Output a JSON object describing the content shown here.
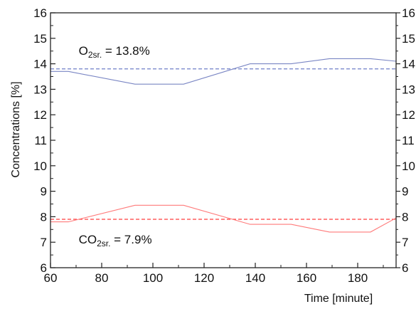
{
  "chart_data": {
    "type": "line",
    "xlabel": "Time [minute]",
    "ylabel": "Concentrations [%]",
    "xlim": [
      60,
      195
    ],
    "ylim": [
      6,
      16
    ],
    "x_ticks": [
      60,
      80,
      100,
      120,
      140,
      160,
      180
    ],
    "y_ticks": [
      6,
      7,
      8,
      9,
      10,
      11,
      12,
      13,
      14,
      15,
      16
    ],
    "right_y_ticks": [
      6,
      7,
      8,
      9,
      10,
      11,
      12,
      13,
      14,
      15,
      16
    ],
    "series": [
      {
        "color": "#7a86c4",
        "points": [
          [
            60,
            13.7
          ],
          [
            67,
            13.7
          ],
          [
            93,
            13.2
          ],
          [
            112,
            13.2
          ],
          [
            138,
            14.0
          ],
          [
            154,
            14.0
          ],
          [
            169,
            14.2
          ],
          [
            185,
            14.2
          ],
          [
            195,
            14.1
          ]
        ]
      },
      {
        "color": "#ff7a7a",
        "points": [
          [
            60,
            7.8
          ],
          [
            67,
            7.8
          ],
          [
            93,
            8.45
          ],
          [
            112,
            8.45
          ],
          [
            138,
            7.7
          ],
          [
            154,
            7.7
          ],
          [
            169,
            7.4
          ],
          [
            185,
            7.4
          ],
          [
            195,
            7.95
          ]
        ]
      }
    ],
    "reference_lines": [
      {
        "y": 13.8,
        "color": "#6f7fc8",
        "style": "dashed"
      },
      {
        "y": 7.9,
        "color": "#ff3d3d",
        "style": "dashed"
      }
    ],
    "annotations": [
      {
        "main": "O",
        "sub": "2sr.",
        "rest": " = 13.8%",
        "x": 71,
        "y": 14.35
      },
      {
        "main": "CO",
        "sub": "2sr.",
        "rest": " = 7.9%",
        "x": 71,
        "y": 6.95
      }
    ]
  }
}
